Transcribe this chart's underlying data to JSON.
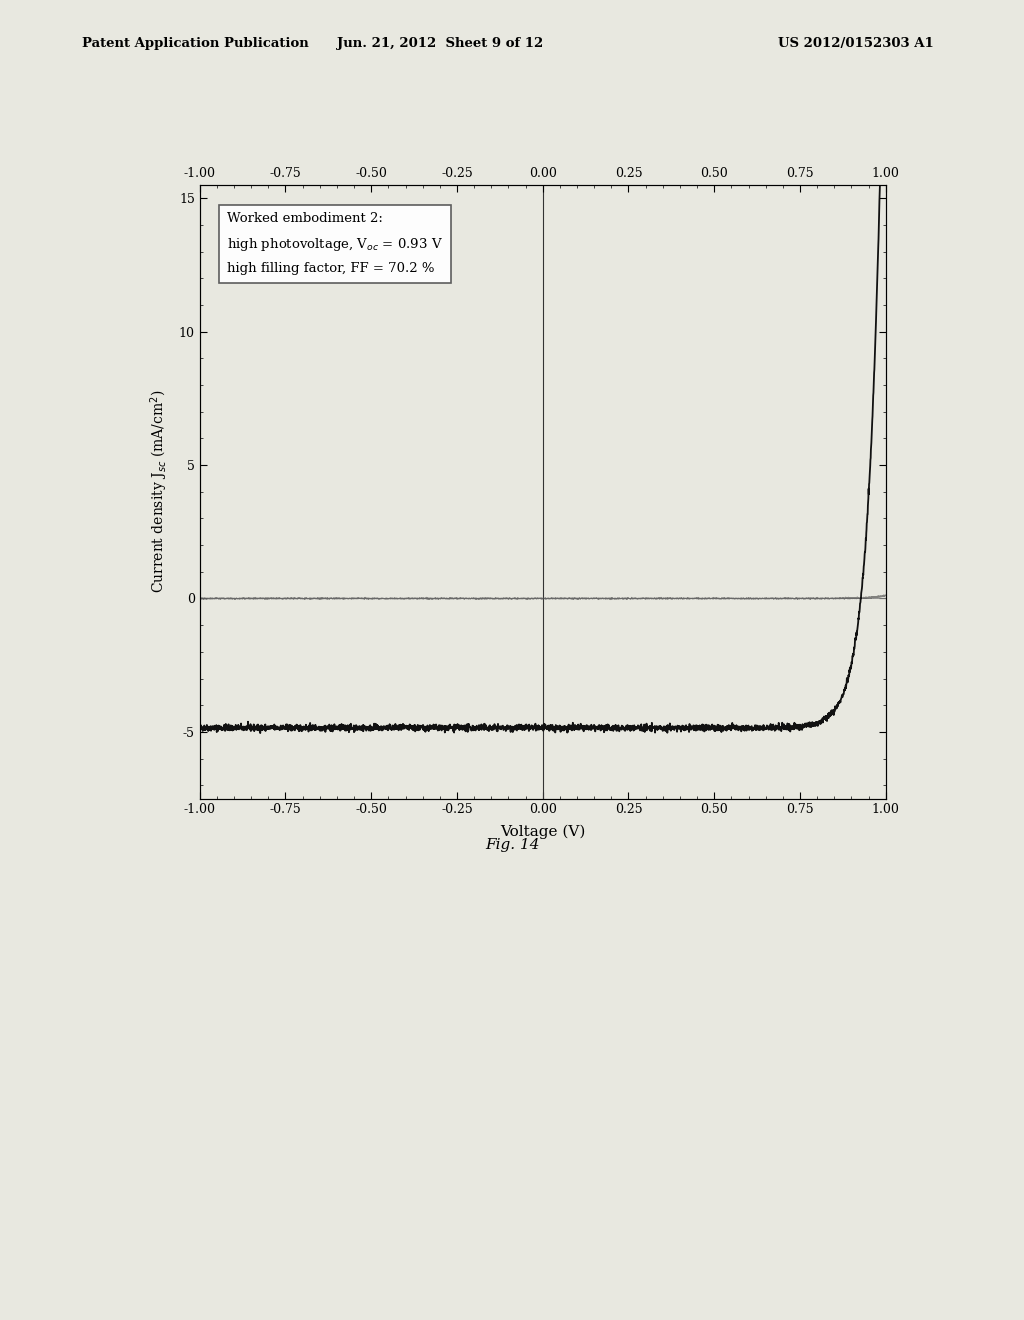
{
  "header_left": "Patent Application Publication",
  "header_center": "Jun. 21, 2012  Sheet 9 of 12",
  "header_right": "US 2012/0152303 A1",
  "xlabel": "Voltage (V)",
  "ylabel": "Current density J$_{sc}$ (mA/cm$^2$)",
  "xlim": [
    -1.0,
    1.0
  ],
  "ylim": [
    -7.5,
    15.5
  ],
  "yticks": [
    -5,
    0,
    5,
    10,
    15
  ],
  "xticks": [
    -1.0,
    -0.75,
    -0.5,
    -0.25,
    0.0,
    0.25,
    0.5,
    0.75,
    1.0
  ],
  "annotation_title": "Worked embodiment 2:",
  "annotation_line1": "high photovoltage, V$_{oc}$ = 0.93 V",
  "annotation_line2": "high filling factor, FF = 70.2 %",
  "figure_caption": "Fig. 14",
  "background_color": "#e8e8e0",
  "plot_bg": "#e8e8e0",
  "curve_color": "#111111",
  "dark_curve_color": "#555555",
  "Voc": 0.93,
  "Jsc": -4.85,
  "J0_illum": 2e-10,
  "J0_dark": 5e-11,
  "n_illum": 1.5,
  "n_dark": 1.8
}
